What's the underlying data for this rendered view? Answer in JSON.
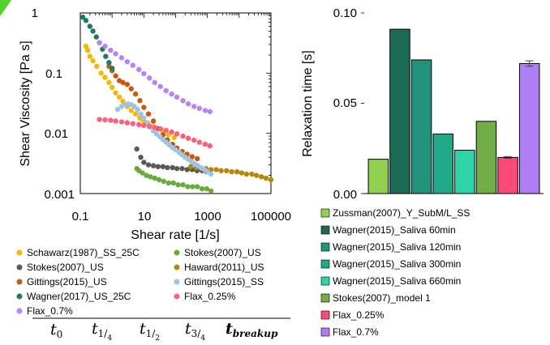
{
  "colors": {
    "green_corner": "#54d22a"
  },
  "chart_data": [
    {
      "type": "scatter",
      "xscale": "log",
      "yscale": "log",
      "xlabel": "Shear rate [1/s]",
      "ylabel": "Shear Viscosity [Pa s]",
      "xlim": [
        0.1,
        100000
      ],
      "ylim": [
        0.001,
        1
      ],
      "x_ticks": [
        "0.1",
        "10",
        "1000",
        "100000"
      ],
      "y_ticks": [
        "0.001",
        "0.01",
        "0.1",
        "1"
      ],
      "legend_position": "below",
      "series": [
        {
          "name": "Schawarz(1987)_SS_25C",
          "color": "#f5b800",
          "x": [
            0.15,
            0.17,
            0.2,
            0.25,
            0.33,
            0.45,
            0.6,
            0.8,
            1.0,
            1.3,
            1.7,
            2.2,
            3.0,
            4.0,
            5.5,
            7.5,
            10,
            14,
            20,
            28,
            40,
            60,
            90
          ],
          "y": [
            0.28,
            0.24,
            0.19,
            0.16,
            0.13,
            0.1,
            0.085,
            0.07,
            0.058,
            0.047,
            0.04,
            0.034,
            0.028,
            0.024,
            0.021,
            0.018,
            0.016,
            0.0145,
            0.013,
            0.012,
            0.011,
            0.0095,
            0.0085
          ]
        },
        {
          "name": "Stokes(2007)_US",
          "color": "#6aaa3a",
          "x": [
            6,
            7,
            9,
            12,
            16,
            22,
            30,
            42,
            60,
            85,
            120,
            170,
            240,
            340,
            480,
            680,
            950,
            1300
          ],
          "y": [
            0.0026,
            0.0024,
            0.0022,
            0.002,
            0.0019,
            0.0018,
            0.0017,
            0.0016,
            0.0015,
            0.0015,
            0.0014,
            0.0014,
            0.0013,
            0.0013,
            0.0013,
            0.0012,
            0.0012,
            0.0011
          ]
        },
        {
          "name": "Stokes(2007)_US",
          "color": "#595959",
          "x": [
            6,
            8,
            10,
            14,
            20,
            28,
            40,
            55,
            80,
            110,
            160,
            230,
            330,
            470,
            680,
            950
          ],
          "y": [
            0.0055,
            0.004,
            0.0033,
            0.003,
            0.0029,
            0.0028,
            0.0028,
            0.0027,
            0.0027,
            0.0026,
            0.0026,
            0.0025,
            0.0025,
            0.0024,
            0.0024,
            0.0023
          ]
        },
        {
          "name": "Haward(2011)_US",
          "color": "#b8860b",
          "x": [
            300,
            450,
            650,
            900,
            1300,
            1900,
            2700,
            4000,
            5800,
            8500,
            12000,
            17000,
            25000,
            35000,
            50000,
            70000,
            100000,
            140000
          ],
          "y": [
            0.0028,
            0.0027,
            0.0026,
            0.0026,
            0.0025,
            0.0025,
            0.0024,
            0.0024,
            0.0023,
            0.0023,
            0.0022,
            0.0021,
            0.0021,
            0.002,
            0.0019,
            0.0018,
            0.0017,
            0.0016
          ]
        },
        {
          "name": "Gittings(2015)_US",
          "color": "#c55a11",
          "x": [
            0.8,
            1.0,
            1.3,
            1.7,
            2.2,
            3.0,
            4.0,
            5.5,
            7.5,
            10,
            14,
            20,
            28,
            40,
            55,
            80,
            110,
            160,
            230,
            330,
            480
          ],
          "y": [
            0.13,
            0.11,
            0.09,
            0.075,
            0.07,
            0.065,
            0.055,
            0.045,
            0.035,
            0.027,
            0.021,
            0.016,
            0.012,
            0.0095,
            0.0078,
            0.0066,
            0.0057,
            0.005,
            0.0045,
            0.0041,
            0.0038
          ]
        },
        {
          "name": "Gittings(2015)_SS",
          "color": "#9dc3e6",
          "x": [
            1.5,
            2.0,
            2.5,
            3.2,
            4.0,
            5.0,
            6.3,
            8,
            10,
            13,
            16,
            20,
            25,
            32,
            40,
            50,
            63,
            80,
            100,
            130,
            160,
            200,
            250,
            320,
            400,
            500,
            630,
            800,
            1000,
            1300
          ],
          "y": [
            0.025,
            0.028,
            0.03,
            0.031,
            0.03,
            0.028,
            0.025,
            0.021,
            0.018,
            0.015,
            0.013,
            0.011,
            0.0098,
            0.0088,
            0.0079,
            0.0071,
            0.0064,
            0.0058,
            0.0053,
            0.0048,
            0.0044,
            0.004,
            0.0037,
            0.0034,
            0.0031,
            0.0029,
            0.0027,
            0.0025,
            0.0023,
            0.0021
          ]
        },
        {
          "name": "Wagner(2017)_US_25C",
          "color": "#1f7a62",
          "x": [
            0.12,
            0.15,
            0.2,
            0.25,
            0.32,
            0.4,
            0.5,
            0.63,
            0.8,
            1.0
          ],
          "y": [
            0.85,
            0.75,
            0.6,
            0.5,
            0.4,
            0.32,
            0.25,
            0.19,
            0.15,
            0.12
          ]
        },
        {
          "name": "Flax_0.25%",
          "color": "#ff5f7e",
          "x": [
            0.4,
            0.6,
            0.9,
            1.3,
            2,
            3,
            4.5,
            7,
            10,
            15,
            22,
            33,
            50,
            75,
            110,
            170,
            250,
            380,
            560,
            850,
            1200
          ],
          "y": [
            0.017,
            0.0168,
            0.0165,
            0.016,
            0.0155,
            0.015,
            0.0145,
            0.014,
            0.0135,
            0.013,
            0.0125,
            0.0119,
            0.0112,
            0.0105,
            0.0098,
            0.009,
            0.0083,
            0.0077,
            0.0071,
            0.0066,
            0.0062
          ]
        },
        {
          "name": "Flax_0.7%",
          "color": "#b784f5",
          "x": [
            0.4,
            0.6,
            0.9,
            1.3,
            2,
            3,
            4.5,
            7,
            10,
            15,
            22,
            33,
            50,
            75,
            110,
            170,
            250,
            380,
            560,
            850,
            1200
          ],
          "y": [
            0.32,
            0.28,
            0.24,
            0.21,
            0.18,
            0.155,
            0.135,
            0.115,
            0.098,
            0.083,
            0.07,
            0.06,
            0.051,
            0.045,
            0.04,
            0.035,
            0.031,
            0.028,
            0.026,
            0.024,
            0.023
          ]
        }
      ],
      "legend": [
        {
          "label": "Schawarz(1987)_SS_25C",
          "color": "#f5b800"
        },
        {
          "label": "Stokes(2007)_US",
          "color": "#6aaa3a"
        },
        {
          "label": "Stokes(2007)_US",
          "color": "#595959"
        },
        {
          "label": "Haward(2011)_US",
          "color": "#b8860b"
        },
        {
          "label": "Gittings(2015)_US",
          "color": "#c55a11"
        },
        {
          "label": "Gittings(2015)_SS",
          "color": "#9dc3e6"
        },
        {
          "label": "Wagner(2017)_US_25C",
          "color": "#1f7a62"
        },
        {
          "label": "Flax_0.25%",
          "color": "#ff5f7e"
        },
        {
          "label": "Flax_0.7%",
          "color": "#b784f5"
        }
      ],
      "time_labels": [
        "t0",
        "t1/4",
        "t1/2",
        "t3/4",
        "tbreakup"
      ]
    },
    {
      "type": "bar",
      "ylabel": "Relaxation time [s]",
      "ylim": [
        0,
        0.1
      ],
      "y_ticks": [
        "0.00",
        "0.05",
        "0.10"
      ],
      "legend_position": "below",
      "categories": [
        "Zussman(2007)_Y_SubM/L_SS",
        "Wagner(2015)_Saliva 60min",
        "Wagner(2015)_Saliva 120min",
        "Wagner(2015)_Saliva 300min",
        "Wagner(2015)_Saliva 660min",
        "Stokes(2007)_model 1",
        "Flax_0.25%",
        "Flax_0.7%"
      ],
      "values": [
        0.019,
        0.091,
        0.074,
        0.033,
        0.024,
        0.04,
        0.02,
        0.072
      ],
      "error": [
        0,
        0,
        0,
        0,
        0,
        0,
        0.0005,
        0.0015
      ],
      "colors": [
        "#92d050",
        "#1b6b55",
        "#22937a",
        "#21a889",
        "#2ed3a8",
        "#70ad47",
        "#ff4a78",
        "#b07ef5"
      ]
    }
  ]
}
